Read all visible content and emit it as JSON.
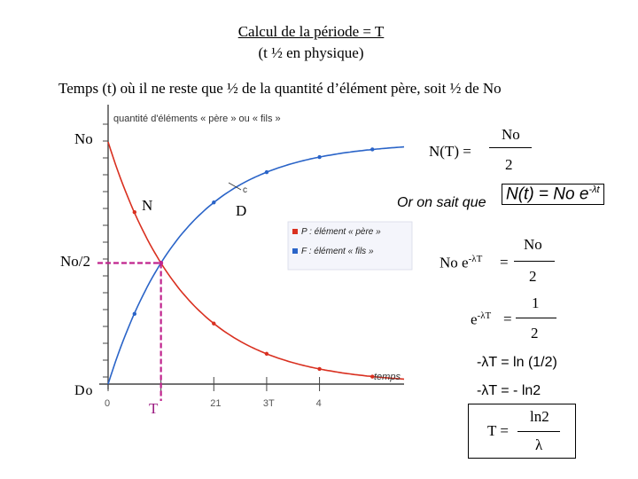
{
  "header": {
    "title": "Calcul de la période = T",
    "subtitle": "(t ½ en physique)",
    "definition": "Temps  (t) où il ne reste que ½ de la quantité d’élément père, soit ½ de No"
  },
  "chart_data": {
    "type": "line",
    "title": "quantité d'éléments « père » ou « fils »",
    "xlabel": "temps",
    "ylabel": "quantité d'éléments « père » ou « fils »",
    "x_ticks": [
      "0",
      "T",
      "2T",
      "3T",
      "4T"
    ],
    "x_tick_labels_shown": [
      "0",
      "21",
      "3T",
      "4"
    ],
    "xlim": [
      0,
      5.6
    ],
    "ylim": [
      0,
      1
    ],
    "grid": false,
    "legend": "center-right",
    "series": [
      {
        "name": "P : élément « père »",
        "color": "#d93020",
        "x": [
          0,
          0.5,
          1,
          2,
          3,
          4,
          5,
          5.6
        ],
        "y": [
          1,
          0.71,
          0.5,
          0.25,
          0.125,
          0.0625,
          0.031,
          0.021
        ]
      },
      {
        "name": "F : élément « fils »",
        "color": "#2a64c8",
        "x": [
          0,
          0.5,
          1,
          2,
          3,
          4,
          5,
          5.6
        ],
        "y": [
          0,
          0.29,
          0.5,
          0.75,
          0.875,
          0.9375,
          0.969,
          0.979
        ]
      }
    ],
    "annotations": {
      "no": "No",
      "n": "N",
      "d": "D",
      "no_half": "No/2",
      "do": "Do",
      "t": "T",
      "graph_letter": "c"
    },
    "legend_labels": [
      "P : élément « père »",
      "F : élément « fils »"
    ]
  },
  "equations": {
    "nt_left": "N(T) =",
    "nt_num": "No",
    "nt_den": "2",
    "or_text": "Or on sait que",
    "law_main": "N(t) = No e",
    "law_exp": "-λt",
    "eq2_left_main": "No e",
    "eq2_left_exp": "-λT",
    "eq2_eq": "=",
    "eq2_num": "No",
    "eq2_den": "2",
    "eq3_left_main": "e",
    "eq3_left_exp": "-λT",
    "eq3_eq": "=",
    "eq3_num": "1",
    "eq3_den": "2",
    "eq4": "-λT = ln (1/2)",
    "eq5": "-λT = - ln2",
    "final_left": "T =",
    "final_num": "ln2",
    "final_den": "λ"
  },
  "colors": {
    "pere": "#d93020",
    "fils": "#2a64c8",
    "guide": "#c0248e",
    "axis": "#444444"
  }
}
